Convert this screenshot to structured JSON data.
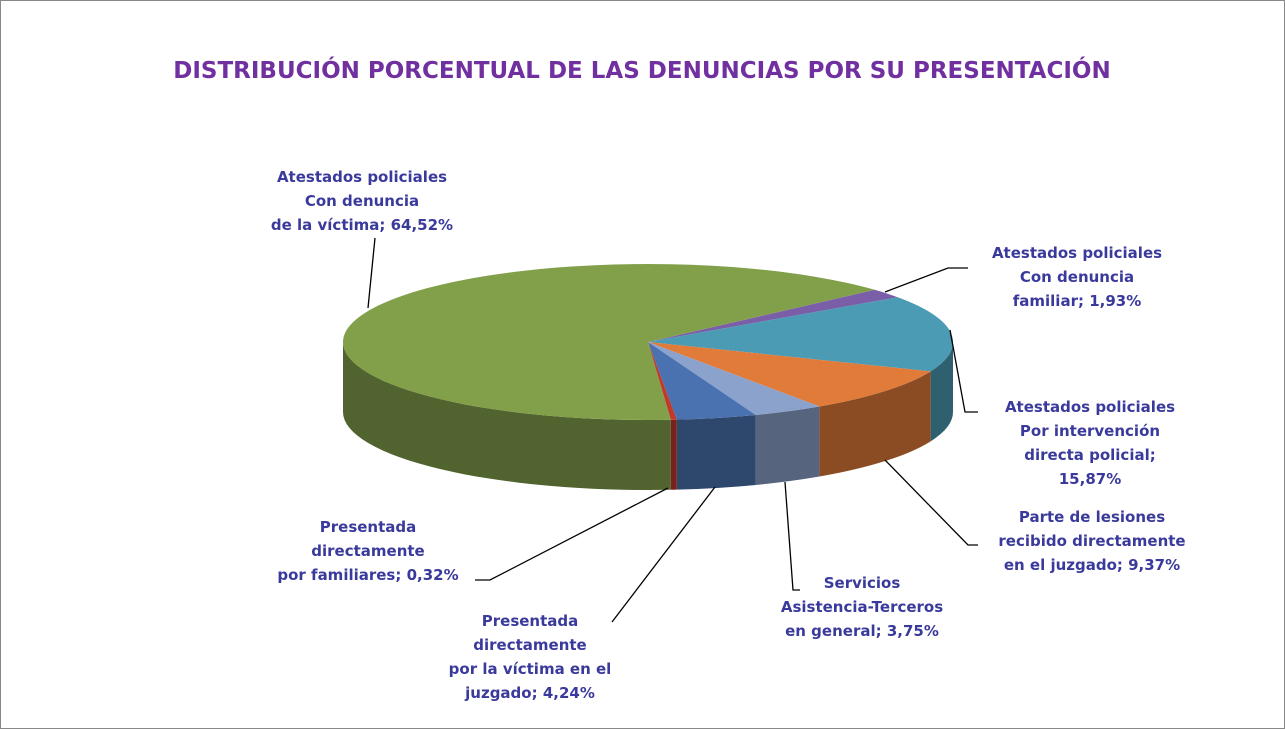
{
  "chart_data": {
    "type": "pie3d",
    "title": "DISTRIBUCIÓN PORCENTUAL DE LAS DENUNCIAS POR SU PRESENTACIÓN",
    "values": [
      1.93,
      15.87,
      9.37,
      3.75,
      4.24,
      0.32,
      64.52
    ],
    "value_labels": [
      "Atestados policiales\nCon denuncia\nfamiliar; 1,93%",
      "Atestados policiales\nPor intervención\ndirecta policial;\n15,87%",
      "Parte de lesiones\nrecibido directamente\nen el juzgado; 9,37%",
      "Servicios\nAsistencia-Terceros\nen general; 3,75%",
      "Presentada\ndirectamente\npor la víctima en el\njuzgado; 4,24%",
      "Presentada\ndirectamente\npor familiares; 0,32%",
      "Atestados policiales\nCon denuncia\nde la víctima; 64,52%"
    ],
    "colors": [
      "#7b5ea8",
      "#4a9bb3",
      "#e07b39",
      "#8aa2cc",
      "#4a72b0",
      "#c0392b",
      "#82a04a"
    ]
  }
}
